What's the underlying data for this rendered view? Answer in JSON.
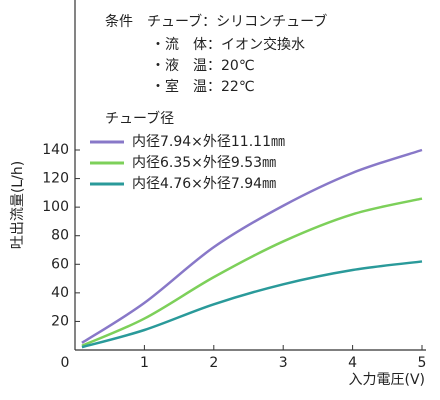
{
  "chart_data": {
    "type": "line",
    "annotations": [
      "条件　チューブ：シリコンチューブ",
      "・流　体：イオン交換水",
      "・液　温：20℃",
      "・室　温：22℃"
    ],
    "legend_title": "チューブ径",
    "y_label": "吐出流量(L/h)",
    "x_label": "入力電圧(V)",
    "x": [
      0.1,
      1,
      2,
      3,
      4,
      5
    ],
    "series": [
      {
        "name": "内径7.94×外径11.11㎜",
        "color": "#8878c8",
        "values": [
          5,
          33,
          72,
          101,
          124,
          140
        ]
      },
      {
        "name": "内径6.35×外径9.53㎜",
        "color": "#7dd05a",
        "values": [
          3,
          22,
          51,
          76,
          95,
          106
        ]
      },
      {
        "name": "内径4.76×外径7.94㎜",
        "color": "#2a9a9a",
        "values": [
          2,
          14,
          32,
          46,
          56,
          62
        ]
      }
    ],
    "xlim": [
      0,
      5
    ],
    "xticks": [
      0,
      1,
      2,
      3,
      4,
      5
    ],
    "ylim": [
      0,
      245
    ],
    "yticks": [
      20,
      40,
      60,
      80,
      100,
      120,
      140
    ]
  }
}
